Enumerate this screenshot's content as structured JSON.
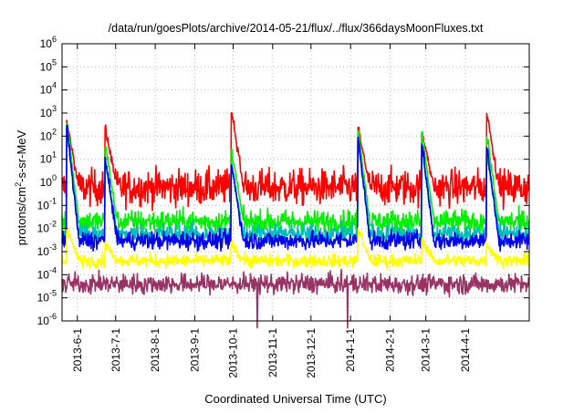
{
  "chart_data": {
    "type": "line",
    "title": "/data/run/goesPlots/archive/2014-05-21/flux/../flux/366daysMoonFluxes.txt",
    "xlabel": "Coordinated Universal Time (UTC)",
    "ylabel": "protons/cm2-s-sr-MeV",
    "ylabel_parts": [
      "protons/cm",
      "2",
      "-s-sr-MeV"
    ],
    "y_scale": "log",
    "ylim_exponents": [
      -6,
      6
    ],
    "y_ticks": [
      {
        "exp": "-6",
        "value": 1e-06
      },
      {
        "exp": "-5",
        "value": 1e-05
      },
      {
        "exp": "-4",
        "value": 0.0001
      },
      {
        "exp": "-3",
        "value": 0.001
      },
      {
        "exp": "-2",
        "value": 0.01
      },
      {
        "exp": "-1",
        "value": 0.1
      },
      {
        "exp": "0",
        "value": 1
      },
      {
        "exp": "1",
        "value": 10
      },
      {
        "exp": "2",
        "value": 100
      },
      {
        "exp": "3",
        "value": 1000
      },
      {
        "exp": "4",
        "value": 10000
      },
      {
        "exp": "5",
        "value": 100000
      },
      {
        "exp": "6",
        "value": 1000000
      }
    ],
    "x_range": [
      "2013-05-20",
      "2014-05-21"
    ],
    "x_tick_labels": [
      "2013-6-1",
      "2013-7-1",
      "2013-8-1",
      "2013-9-1",
      "2013-10-1",
      "2013-11-1",
      "2013-12-1",
      "2014-1-1",
      "2014-2-1",
      "2014-3-1",
      "2014-4-1"
    ],
    "x_tick_dates": [
      "2013-06-01",
      "2013-07-01",
      "2013-08-01",
      "2013-09-01",
      "2013-10-01",
      "2013-11-01",
      "2013-12-01",
      "2014-01-01",
      "2014-02-01",
      "2014-03-01",
      "2014-04-01"
    ],
    "grid": true,
    "series": [
      {
        "color": "#ff0000",
        "baseline": 0.6,
        "noise": 0.55,
        "events": [
          {
            "date": "2013-05-24",
            "peak": 400
          },
          {
            "date": "2013-06-23",
            "peak": 200
          },
          {
            "date": "2013-09-30",
            "peak": 1100
          },
          {
            "date": "2014-01-07",
            "peak": 220
          },
          {
            "date": "2014-02-26",
            "peak": 150
          },
          {
            "date": "2014-04-18",
            "peak": 1000
          }
        ]
      },
      {
        "color": "#00ee00",
        "baseline": 0.02,
        "noise": 0.35,
        "events": [
          {
            "date": "2013-05-24",
            "peak": 400
          },
          {
            "date": "2013-06-23",
            "peak": 40
          },
          {
            "date": "2013-09-30",
            "peak": 20
          },
          {
            "date": "2014-01-07",
            "peak": 200
          },
          {
            "date": "2014-02-26",
            "peak": 150
          },
          {
            "date": "2014-04-18",
            "peak": 100
          }
        ]
      },
      {
        "color": "#00bbbb",
        "baseline": 0.006,
        "noise": 0.3,
        "events": [
          {
            "date": "2013-05-24",
            "peak": 200
          },
          {
            "date": "2013-06-23",
            "peak": 8
          },
          {
            "date": "2013-09-30",
            "peak": 5
          },
          {
            "date": "2014-01-07",
            "peak": 60
          },
          {
            "date": "2014-02-26",
            "peak": 40
          },
          {
            "date": "2014-04-18",
            "peak": 20
          }
        ]
      },
      {
        "color": "#0000ee",
        "baseline": 0.003,
        "noise": 0.28,
        "events": [
          {
            "date": "2013-05-24",
            "peak": 250
          },
          {
            "date": "2013-06-23",
            "peak": 10
          },
          {
            "date": "2013-09-30",
            "peak": 5
          },
          {
            "date": "2014-01-07",
            "peak": 100
          },
          {
            "date": "2014-02-26",
            "peak": 60
          },
          {
            "date": "2014-04-18",
            "peak": 30
          }
        ]
      },
      {
        "color": "#ffff00",
        "baseline": 0.0004,
        "noise": 0.2,
        "events": [
          {
            "date": "2013-05-24",
            "peak": 0.01
          },
          {
            "date": "2013-06-23",
            "peak": 0.002
          },
          {
            "date": "2013-09-30",
            "peak": 0.002
          },
          {
            "date": "2014-01-07",
            "peak": 0.01
          },
          {
            "date": "2014-02-26",
            "peak": 0.003
          },
          {
            "date": "2014-04-18",
            "peak": 0.002
          }
        ]
      },
      {
        "color": "#993366",
        "baseline": 4e-05,
        "noise": 0.3,
        "events": []
      }
    ]
  }
}
